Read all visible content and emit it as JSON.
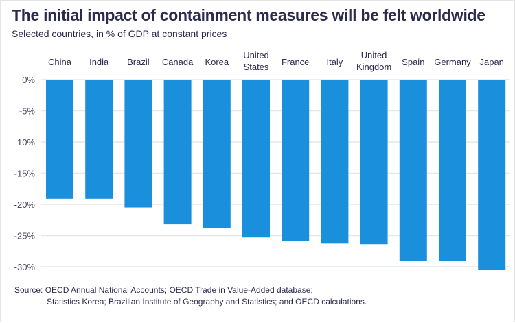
{
  "chart_data": {
    "type": "bar",
    "title": "The initial impact of containment measures will be felt worldwide",
    "subtitle": "Selected countries, in % of GDP at constant prices",
    "categories": [
      "China",
      "India",
      "Brazil",
      "Canada",
      "Korea",
      "United States",
      "France",
      "Italy",
      "United Kingdom",
      "Spain",
      "Germany",
      "Japan"
    ],
    "values": [
      -19.1,
      -19.1,
      -20.5,
      -23.2,
      -23.8,
      -25.3,
      -25.9,
      -26.3,
      -26.4,
      -29.1,
      -29.1,
      -30.5
    ],
    "ylim": [
      -30,
      0
    ],
    "yticks": [
      "0%",
      "-5%",
      "-10%",
      "-15%",
      "-20%",
      "-25%",
      "-30%"
    ],
    "ytick_values": [
      0,
      -5,
      -10,
      -15,
      -20,
      -25,
      -30
    ],
    "xaxis_position": "top",
    "grid": true,
    "bar_color": "#1a8fdc",
    "source_line1": "Source:  OECD Annual National Accounts; OECD Trade in Value-Added database;",
    "source_line2": "Statistics Korea; Brazilian Institute of Geography and Statistics; and OECD calculations."
  }
}
